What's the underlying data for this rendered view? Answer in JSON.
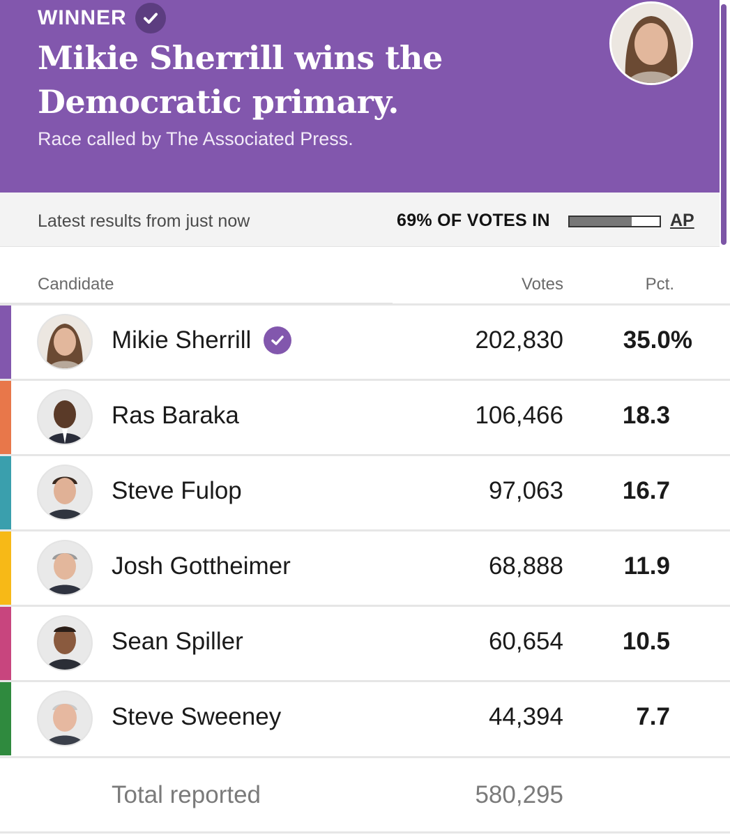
{
  "banner": {
    "winner_label": "WINNER",
    "headline_line1": "Mikie Sherrill wins the",
    "headline_line2": "Democratic primary.",
    "subhead": "Race called by The Associated Press.",
    "background_color": "#8257ad"
  },
  "status": {
    "updated_text": "Latest results from just now",
    "votes_in_text": "69% OF VOTES IN",
    "votes_in_fraction": 0.69,
    "source_link": "AP"
  },
  "table": {
    "headers": {
      "candidate": "Candidate",
      "votes": "Votes",
      "pct": "Pct."
    },
    "rows": [
      {
        "name": "Mikie Sherrill",
        "votes": "202,830",
        "pct": "35.0%",
        "color": "#8257ad",
        "winner": true
      },
      {
        "name": "Ras Baraka",
        "votes": "106,466",
        "pct": "18.3",
        "color": "#e8774a"
      },
      {
        "name": "Steve Fulop",
        "votes": "97,063",
        "pct": "16.7",
        "color": "#3a9fad"
      },
      {
        "name": "Josh Gottheimer",
        "votes": "68,888",
        "pct": "11.9",
        "color": "#f7b917"
      },
      {
        "name": "Sean Spiller",
        "votes": "60,654",
        "pct": "10.5",
        "color": "#c8457e"
      },
      {
        "name": "Steve Sweeney",
        "votes": "44,394",
        "pct": "7.7",
        "color": "#2f8a3e"
      }
    ],
    "total_label": "Total reported",
    "total_votes": "580,295"
  }
}
